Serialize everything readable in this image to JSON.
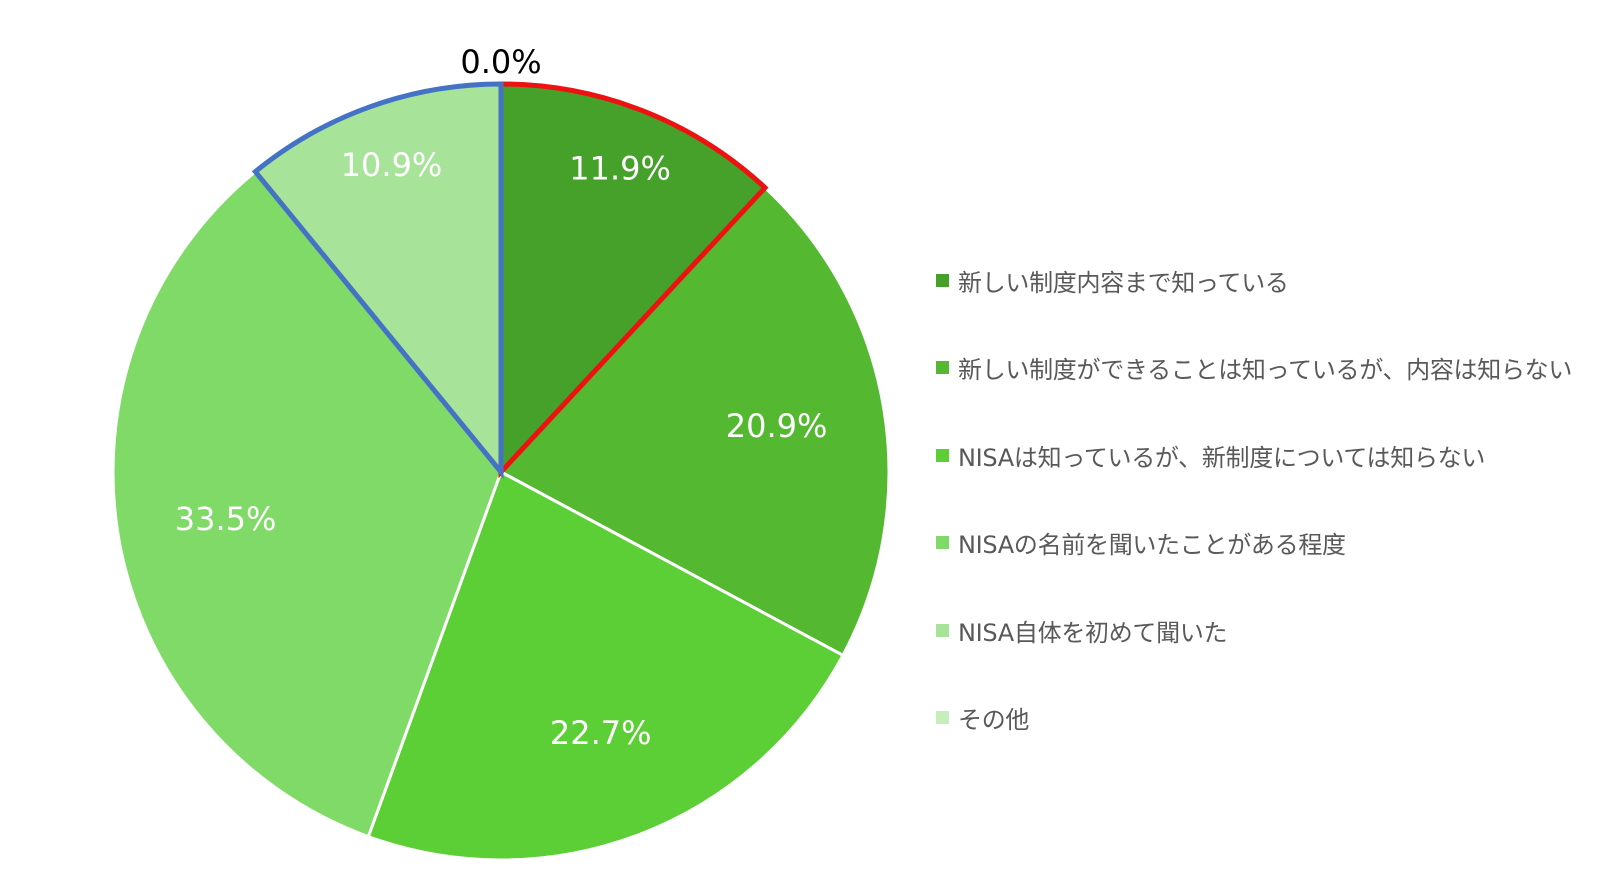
{
  "chart_data": {
    "type": "pie",
    "title": "",
    "start_angle_deg": 0,
    "direction": "clockwise",
    "slices": [
      {
        "label": "新しい制度内容まで知っている",
        "value": 11.9,
        "display": "11.9%",
        "color": "#46a12a",
        "label_color": "#ffffff"
      },
      {
        "label": "新しい制度ができることは知っているが、内容は知らない",
        "value": 20.9,
        "display": "20.9%",
        "color": "#54b831",
        "label_color": "#ffffff"
      },
      {
        "label": "NISAは知っているが、新制度については知らない",
        "value": 22.7,
        "display": "22.7%",
        "color": "#5ccf36",
        "label_color": "#ffffff"
      },
      {
        "label": "NISAの名前を聞いたことがある程度",
        "value": 33.5,
        "display": "33.5%",
        "color": "#80da68",
        "label_color": "#ffffff"
      },
      {
        "label": "NISA自体を初めて聞いた",
        "value": 10.9,
        "display": "10.9%",
        "color": "#a8e39a",
        "label_color": "#ffffff"
      },
      {
        "label": "その他",
        "value": 0.0,
        "display": "0.0%",
        "color": "#c6eebb",
        "label_color": "#000000"
      }
    ],
    "highlights": [
      {
        "slices": [
          0
        ],
        "outline_color": "#ee1111"
      },
      {
        "slices": [
          4,
          5
        ],
        "outline_color": "#4472c4"
      }
    ],
    "legend_position": "right"
  }
}
